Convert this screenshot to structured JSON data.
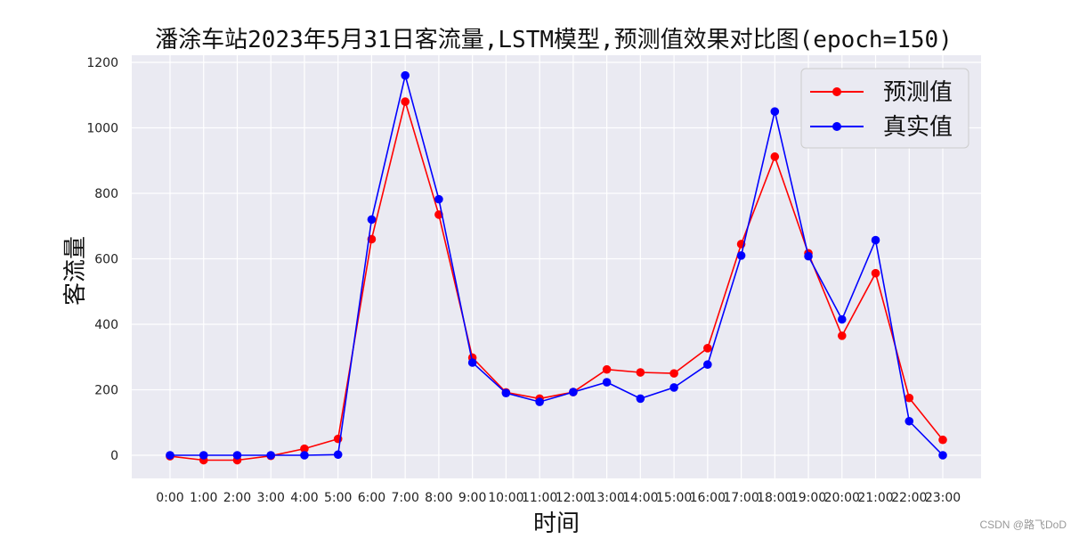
{
  "chart_data": {
    "type": "line",
    "title": "潘涂车站2023年5月31日客流量,LSTM模型,预测值效果对比图(epoch=150)",
    "xlabel": "时间",
    "ylabel": "客流量",
    "categories": [
      "0:00",
      "1:00",
      "2:00",
      "3:00",
      "4:00",
      "5:00",
      "6:00",
      "7:00",
      "8:00",
      "9:00",
      "10:00",
      "11:00",
      "12:00",
      "13:00",
      "14:00",
      "15:00",
      "16:00",
      "17:00",
      "18:00",
      "19:00",
      "20:00",
      "21:00",
      "22:00",
      "23:00"
    ],
    "yticks": [
      0,
      200,
      400,
      600,
      800,
      1000,
      1200
    ],
    "ylim": [
      -70,
      1225
    ],
    "grid": true,
    "legend_position": "top-right",
    "series": [
      {
        "name": "预测值",
        "color": "#ff0000",
        "values": [
          -3,
          -15,
          -15,
          -2,
          20,
          50,
          660,
          1080,
          735,
          298,
          192,
          173,
          193,
          262,
          253,
          250,
          327,
          645,
          912,
          617,
          365,
          556,
          175,
          47
        ]
      },
      {
        "name": "真实值",
        "color": "#0000ff",
        "values": [
          0,
          0,
          0,
          0,
          0,
          2,
          720,
          1160,
          782,
          283,
          190,
          163,
          193,
          223,
          173,
          207,
          277,
          610,
          1050,
          608,
          415,
          657,
          104,
          0
        ]
      }
    ]
  },
  "watermark": "CSDN @路飞DoD"
}
